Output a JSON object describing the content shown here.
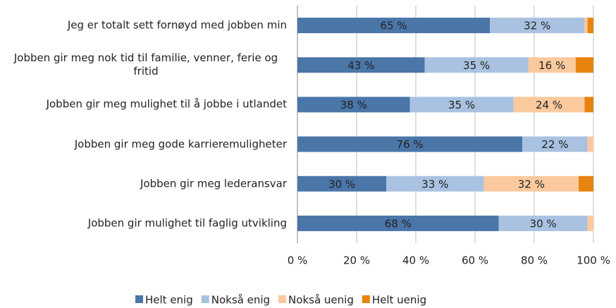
{
  "chart_data": {
    "type": "stacked_barh",
    "categories": [
      "Jeg er totalt sett fornøyd med jobben min",
      "Jobben gir meg nok tid til familie, venner, ferie og fritid",
      "Jobben gir meg mulighet til å jobbe i utlandet",
      "Jobben gir meg gode karrieremuligheter",
      "Jobben gir meg lederansvar",
      "Jobben gir mulighet til faglig utvikling"
    ],
    "series": [
      {
        "name": "Helt enig",
        "color": "#4a76a8",
        "values": [
          65,
          43,
          38,
          76,
          30,
          68
        ],
        "value_labels": [
          "65 %",
          "43 %",
          "38 %",
          "76 %",
          "30 %",
          "68 %"
        ]
      },
      {
        "name": "Nokså enig",
        "color": "#a9c2e1",
        "values": [
          32,
          35,
          35,
          22,
          33,
          30
        ],
        "value_labels": [
          "32 %",
          "35 %",
          "35 %",
          "22 %",
          "33 %",
          "30 %"
        ]
      },
      {
        "name": "Nokså uenig",
        "color": "#fbc99e",
        "values": [
          1,
          16,
          24,
          2,
          32,
          2
        ],
        "value_labels": [
          null,
          "16 %",
          "24 %",
          null,
          "32 %",
          null
        ]
      },
      {
        "name": "Helt uenig",
        "color": "#e8830f",
        "values": [
          2,
          6,
          3,
          0,
          5,
          0
        ],
        "value_labels": [
          null,
          null,
          null,
          null,
          null,
          null
        ]
      }
    ],
    "xlim": [
      0,
      100
    ],
    "xticks": [
      {
        "value": 0,
        "label": "0 %"
      },
      {
        "value": 20,
        "label": "20 %"
      },
      {
        "value": 40,
        "label": "40 %"
      },
      {
        "value": 60,
        "label": "60 %"
      },
      {
        "value": 80,
        "label": "80 %"
      },
      {
        "value": 100,
        "label": "100 %"
      }
    ],
    "grid": true,
    "legend": "bottom"
  }
}
